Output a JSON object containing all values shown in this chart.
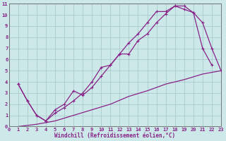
{
  "xlabel": "Windchill (Refroidissement éolien,°C)",
  "xlim": [
    0,
    23
  ],
  "ylim": [
    0,
    11
  ],
  "xticks": [
    0,
    1,
    2,
    3,
    4,
    5,
    6,
    7,
    8,
    9,
    10,
    11,
    12,
    13,
    14,
    15,
    16,
    17,
    18,
    19,
    20,
    21,
    22,
    23
  ],
  "yticks": [
    0,
    1,
    2,
    3,
    4,
    5,
    6,
    7,
    8,
    9,
    10,
    11
  ],
  "bg_color": "#cce8e8",
  "grid_color": "#aacccc",
  "line_color": "#882288",
  "curve1_x": [
    1,
    2,
    3,
    4,
    5,
    6,
    7,
    8,
    9,
    10,
    11,
    12,
    13,
    14,
    15,
    16,
    17,
    18,
    19,
    20,
    21,
    22
  ],
  "curve1_y": [
    3.8,
    2.3,
    1.0,
    0.5,
    1.5,
    2.0,
    3.2,
    2.8,
    3.5,
    4.5,
    5.5,
    6.5,
    6.5,
    7.7,
    8.3,
    9.3,
    10.1,
    10.8,
    10.8,
    10.2,
    7.0,
    5.5
  ],
  "curve2_x": [
    1,
    2,
    3,
    4,
    5,
    6,
    7,
    8,
    9,
    10,
    11,
    12,
    13,
    14,
    15,
    16,
    17,
    18,
    19,
    20,
    21,
    22,
    23
  ],
  "curve2_y": [
    3.8,
    2.3,
    1.0,
    0.5,
    1.2,
    1.7,
    2.3,
    3.0,
    4.0,
    5.3,
    5.5,
    6.5,
    7.5,
    8.3,
    9.3,
    10.3,
    10.3,
    10.8,
    10.5,
    10.2,
    9.3,
    7.0,
    5.0
  ],
  "curve3_x": [
    1,
    3,
    5,
    7,
    9,
    11,
    13,
    15,
    17,
    19,
    21,
    23
  ],
  "curve3_y": [
    0.0,
    0.2,
    0.5,
    1.0,
    1.5,
    2.0,
    2.7,
    3.2,
    3.8,
    4.2,
    4.7,
    5.0
  ]
}
